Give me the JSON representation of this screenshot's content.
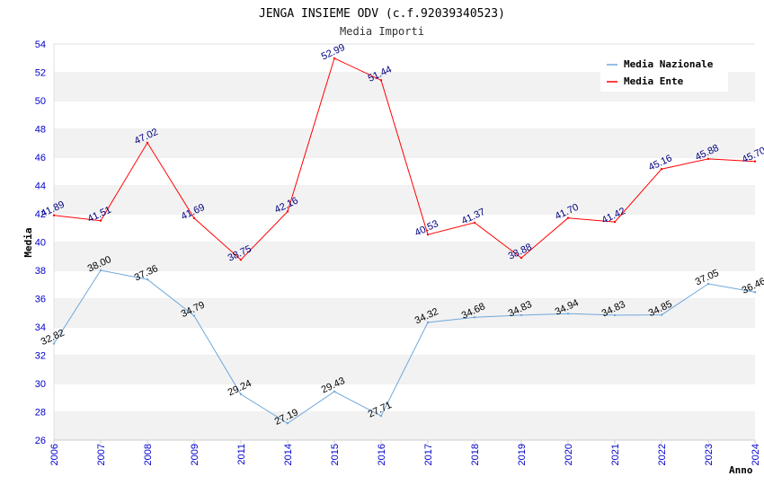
{
  "chart_data": {
    "type": "line",
    "title": "JENGA INSIEME ODV (c.f.92039340523)",
    "subtitle": "Media Importi",
    "xlabel": "Anno",
    "ylabel": "Media",
    "ylim": [
      26,
      54
    ],
    "yticks": [
      "26",
      "28",
      "30",
      "32",
      "34",
      "36",
      "38",
      "40",
      "42",
      "44",
      "46",
      "48",
      "50",
      "52",
      "54"
    ],
    "categories": [
      "2006",
      "2007",
      "2008",
      "2009",
      "2011",
      "2014",
      "2015",
      "2016",
      "2017",
      "2018",
      "2019",
      "2020",
      "2021",
      "2022",
      "2023",
      "2024"
    ],
    "grid": true,
    "legend_position": "top-right",
    "series": [
      {
        "name": "Media Nazionale",
        "color": "#6fa8dc",
        "values": [
          32.82,
          38.0,
          37.36,
          34.79,
          29.24,
          27.19,
          29.43,
          27.71,
          34.32,
          34.68,
          34.83,
          34.94,
          34.83,
          34.85,
          37.05,
          36.46
        ],
        "labels": [
          "32.82",
          "38.00",
          "37.36",
          "34.79",
          "29.24",
          "27.19",
          "29.43",
          "27.71",
          "34.32",
          "34.68",
          "34.83",
          "34.94",
          "34.83",
          "34.85",
          "37.05",
          "36.46"
        ]
      },
      {
        "name": "Media Ente",
        "color": "#ff0000",
        "values": [
          41.89,
          41.51,
          47.02,
          41.69,
          38.75,
          42.16,
          52.99,
          51.44,
          40.53,
          41.37,
          38.88,
          41.7,
          41.42,
          45.16,
          45.88,
          45.7
        ],
        "labels": [
          "41.89",
          "41.51",
          "47.02",
          "41.69",
          "38.75",
          "42.16",
          "52.99",
          "51.44",
          "40.53",
          "41.37",
          "38.88",
          "41.70",
          "41.42",
          "45.16",
          "45.88",
          "45.70"
        ]
      }
    ]
  }
}
